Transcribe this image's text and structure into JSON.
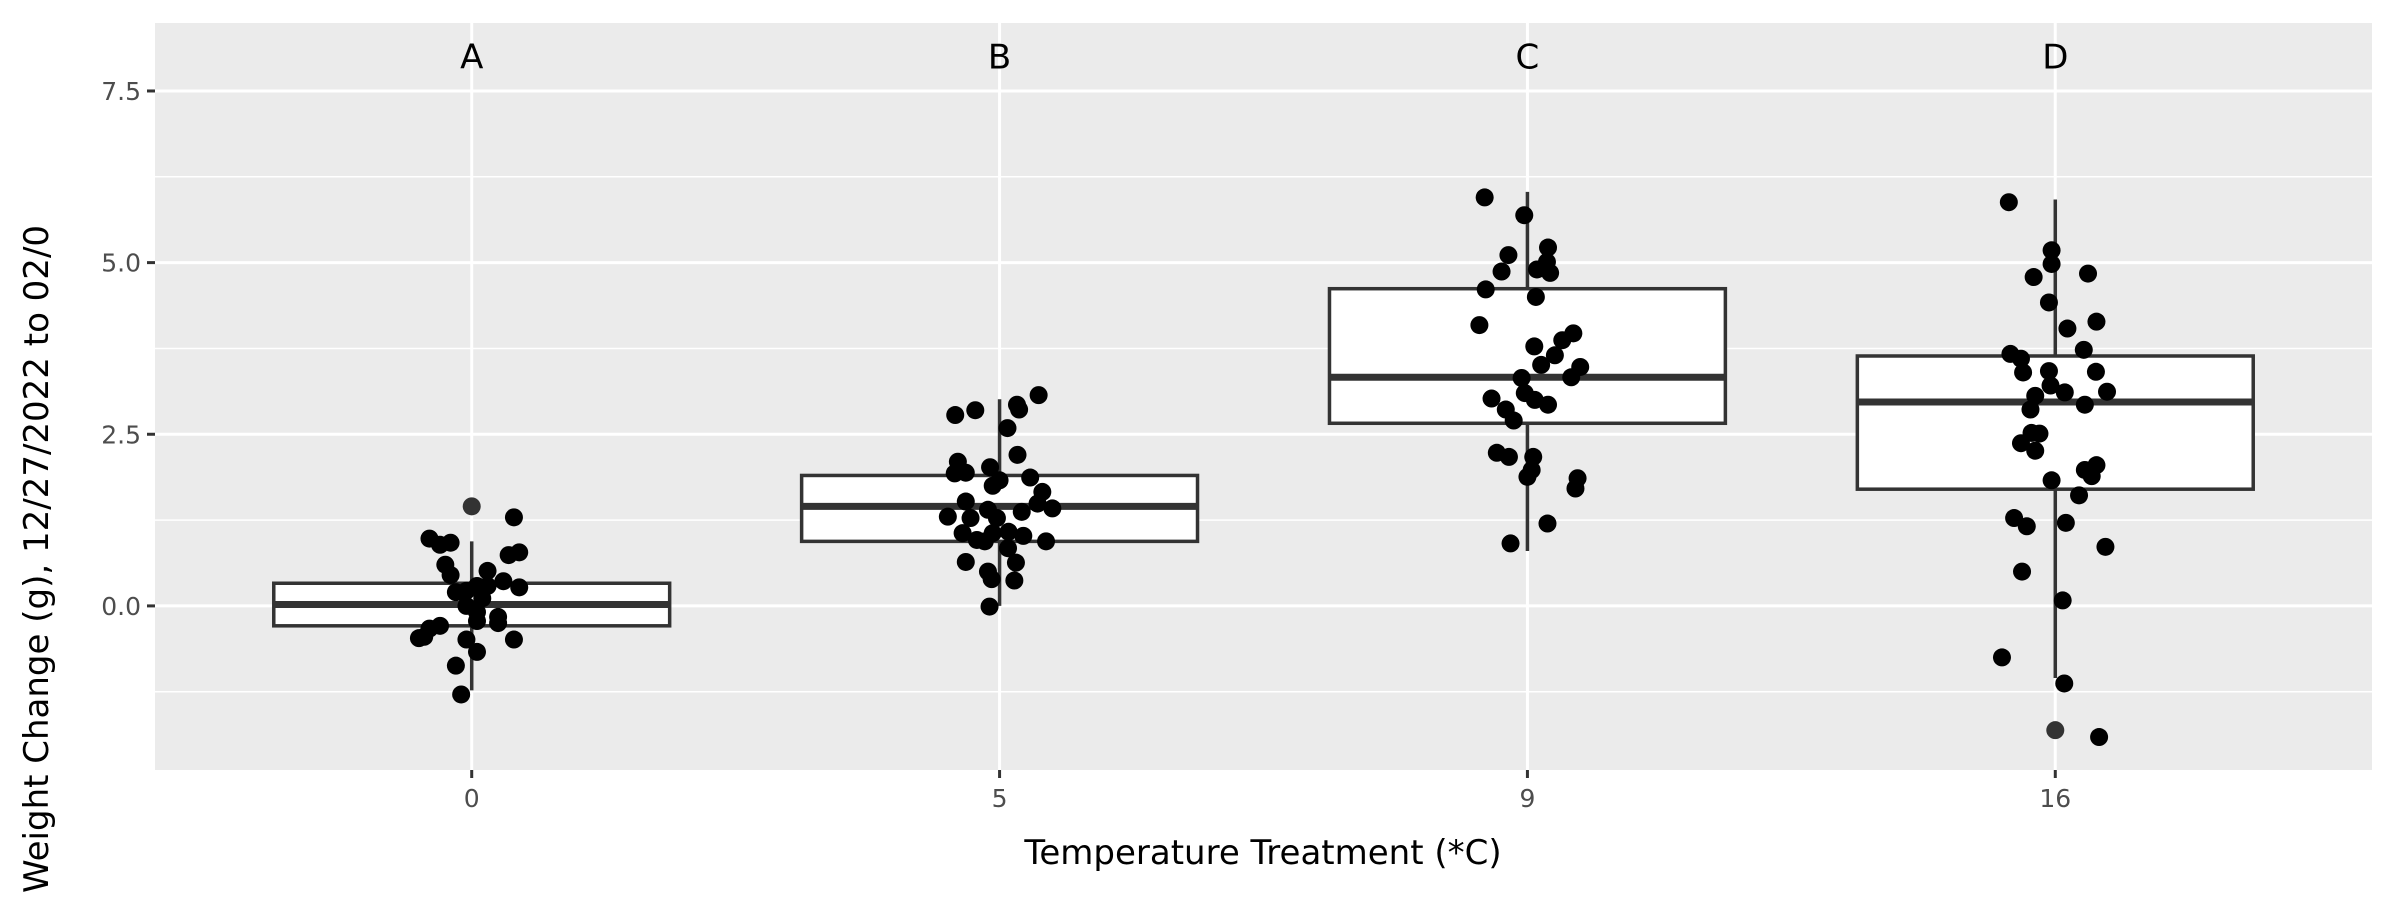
{
  "chart_data": {
    "type": "box",
    "title": "",
    "xlabel": "Temperature Treatment (*C)",
    "ylabel": "Weight Change (g), 12/27/2022 to 02/0",
    "categories": [
      "0",
      "5",
      "9",
      "16"
    ],
    "ylim": [
      -2.39,
      8.49
    ],
    "yticks": [
      0.0,
      2.5,
      5.0,
      7.5
    ],
    "ytick_labels": [
      "0.0",
      "2.5",
      "5.0",
      "7.5"
    ],
    "minor_gridlines": [
      -1.25,
      1.25,
      3.75,
      6.25
    ],
    "grid": true,
    "legend": "none",
    "group_letters": [
      "A",
      "B",
      "C",
      "D"
    ],
    "group_letter_y": 8.0,
    "boxes": [
      {
        "category": "0",
        "whisker_low": -1.23,
        "q1": -0.29,
        "median": 0.02,
        "q3": 0.33,
        "whisker_high": 0.94,
        "outliers": [
          1.45
        ]
      },
      {
        "category": "5",
        "whisker_low": 0.0,
        "q1": 0.94,
        "median": 1.45,
        "q3": 1.9,
        "whisker_high": 3.01,
        "outliers": []
      },
      {
        "category": "9",
        "whisker_low": 0.8,
        "q1": 2.66,
        "median": 3.33,
        "q3": 4.62,
        "whisker_high": 6.03,
        "outliers": []
      },
      {
        "category": "16",
        "whisker_low": -1.05,
        "q1": 1.7,
        "median": 2.97,
        "q3": 3.64,
        "whisker_high": 5.92,
        "outliers": [
          -1.81
        ]
      }
    ],
    "points": [
      {
        "category": "0",
        "jitter_and_value": [
          [
            0.08,
            1.29
          ],
          [
            -0.08,
            0.98
          ],
          [
            -0.06,
            0.89
          ],
          [
            -0.04,
            0.92
          ],
          [
            -0.05,
            0.6
          ],
          [
            -0.04,
            0.45
          ],
          [
            0.07,
            0.74
          ],
          [
            0.09,
            0.78
          ],
          [
            0.03,
            0.51
          ],
          [
            0.06,
            0.36
          ],
          [
            0.01,
            0.29
          ],
          [
            0.03,
            0.29
          ],
          [
            -0.01,
            0.22
          ],
          [
            -0.03,
            0.2
          ],
          [
            0.09,
            0.27
          ],
          [
            0.02,
            0.11
          ],
          [
            -0.01,
            0
          ],
          [
            0.01,
            -0.09
          ],
          [
            0.05,
            -0.16
          ],
          [
            0.05,
            -0.25
          ],
          [
            0.01,
            -0.22
          ],
          [
            -0.06,
            -0.29
          ],
          [
            -0.08,
            -0.33
          ],
          [
            -0.09,
            -0.45
          ],
          [
            -0.1,
            -0.47
          ],
          [
            -0.01,
            -0.49
          ],
          [
            0.08,
            -0.49
          ],
          [
            0.01,
            -0.67
          ],
          [
            -0.03,
            -0.87
          ],
          [
            -0.02,
            -1.29
          ]
        ]
      },
      {
        "category": "5",
        "jitter_and_value": [
          [
            -0.084,
            2.78
          ],
          [
            -0.046,
            2.85
          ],
          [
            0.033,
            2.93
          ],
          [
            0.037,
            2.86
          ],
          [
            0.074,
            3.07
          ],
          [
            0.015,
            2.59
          ],
          [
            0.034,
            2.2
          ],
          [
            -0.079,
            2.1
          ],
          [
            -0.085,
            1.93
          ],
          [
            -0.064,
            1.94
          ],
          [
            -0.018,
            2.02
          ],
          [
            0,
            1.83
          ],
          [
            -0.013,
            1.75
          ],
          [
            0.058,
            1.87
          ],
          [
            0.081,
            1.66
          ],
          [
            0.072,
            1.49
          ],
          [
            0.1,
            1.42
          ],
          [
            0.042,
            1.37
          ],
          [
            -0.064,
            1.52
          ],
          [
            -0.098,
            1.3
          ],
          [
            -0.022,
            1.4
          ],
          [
            -0.005,
            1.28
          ],
          [
            -0.055,
            1.28
          ],
          [
            -0.07,
            1.06
          ],
          [
            -0.043,
            0.96
          ],
          [
            -0.028,
            0.94
          ],
          [
            -0.013,
            1.06
          ],
          [
            0.017,
            1.08
          ],
          [
            0.016,
            0.84
          ],
          [
            0.045,
            1.02
          ],
          [
            0.088,
            0.94
          ],
          [
            -0.064,
            0.64
          ],
          [
            -0.022,
            0.5
          ],
          [
            -0.015,
            0.39
          ],
          [
            0.031,
            0.63
          ],
          [
            0.028,
            0.37
          ],
          [
            -0.019,
            -0.01
          ]
        ]
      },
      {
        "category": "9",
        "jitter_and_value": [
          [
            -0.081,
            5.95
          ],
          [
            -0.006,
            5.69
          ],
          [
            -0.036,
            5.11
          ],
          [
            -0.049,
            4.87
          ],
          [
            0.039,
            5.22
          ],
          [
            0.037,
            5.01
          ],
          [
            0.018,
            4.9
          ],
          [
            0.043,
            4.85
          ],
          [
            -0.079,
            4.61
          ],
          [
            0.016,
            4.5
          ],
          [
            -0.091,
            4.09
          ],
          [
            0.087,
            3.97
          ],
          [
            0.066,
            3.87
          ],
          [
            0.013,
            3.78
          ],
          [
            0.052,
            3.65
          ],
          [
            0.026,
            3.51
          ],
          [
            0.1,
            3.48
          ],
          [
            0.083,
            3.33
          ],
          [
            -0.011,
            3.32
          ],
          [
            -0.068,
            3.02
          ],
          [
            -0.041,
            2.86
          ],
          [
            -0.026,
            2.7
          ],
          [
            -0.005,
            3.1
          ],
          [
            0.014,
            3.0
          ],
          [
            0.039,
            2.93
          ],
          [
            -0.058,
            2.23
          ],
          [
            -0.035,
            2.17
          ],
          [
            0.011,
            2.17
          ],
          [
            0.008,
            1.98
          ],
          [
            0,
            1.88
          ],
          [
            0.095,
            1.86
          ],
          [
            0.091,
            1.71
          ],
          [
            0.038,
            1.2
          ],
          [
            -0.032,
            0.91
          ]
        ]
      },
      {
        "category": "16",
        "jitter_and_value": [
          [
            -0.088,
            5.88
          ],
          [
            -0.007,
            5.18
          ],
          [
            -0.007,
            4.98
          ],
          [
            -0.041,
            4.79
          ],
          [
            0.062,
            4.84
          ],
          [
            -0.012,
            4.42
          ],
          [
            0.023,
            4.04
          ],
          [
            0.078,
            4.14
          ],
          [
            -0.085,
            3.67
          ],
          [
            -0.065,
            3.6
          ],
          [
            0.054,
            3.73
          ],
          [
            -0.061,
            3.4
          ],
          [
            -0.012,
            3.42
          ],
          [
            0.077,
            3.41
          ],
          [
            -0.009,
            3.21
          ],
          [
            0.018,
            3.11
          ],
          [
            -0.038,
            3.06
          ],
          [
            0.098,
            3.12
          ],
          [
            -0.047,
            2.86
          ],
          [
            0.056,
            2.93
          ],
          [
            -0.045,
            2.52
          ],
          [
            -0.03,
            2.51
          ],
          [
            -0.065,
            2.37
          ],
          [
            -0.038,
            2.26
          ],
          [
            0.056,
            1.98
          ],
          [
            0.078,
            2.05
          ],
          [
            0.069,
            1.89
          ],
          [
            -0.007,
            1.83
          ],
          [
            0.045,
            1.61
          ],
          [
            -0.078,
            1.28
          ],
          [
            -0.054,
            1.16
          ],
          [
            0.02,
            1.21
          ],
          [
            0.095,
            0.86
          ],
          [
            -0.063,
            0.5
          ],
          [
            0.014,
            0.08
          ],
          [
            -0.101,
            -0.75
          ],
          [
            0.017,
            -1.13
          ],
          [
            0.083,
            -1.91
          ]
        ]
      }
    ],
    "colors": {
      "panel": "#ebebeb",
      "grid": "#ffffff",
      "box_line": "#333333",
      "box_fill": "#ffffff",
      "point": "#000000",
      "outlier": "#333333",
      "tick_text": "#4d4d4d"
    }
  }
}
